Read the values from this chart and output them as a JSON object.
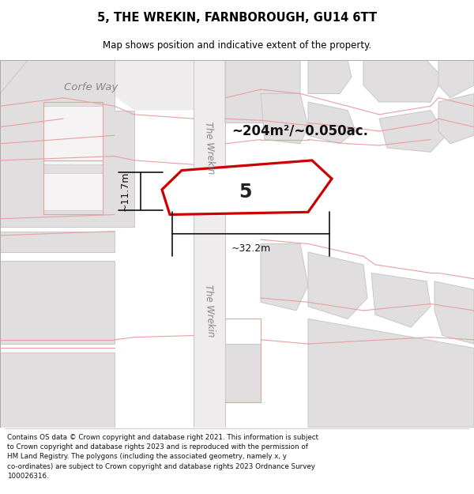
{
  "title": "5, THE WREKIN, FARNBOROUGH, GU14 6TT",
  "subtitle": "Map shows position and indicative extent of the property.",
  "footer": "Contains OS data © Crown copyright and database right 2021. This information is subject\nto Crown copyright and database rights 2023 and is reproduced with the permission of\nHM Land Registry. The polygons (including the associated geometry, namely x, y\nco-ordinates) are subject to Crown copyright and database rights 2023 Ordnance Survey\n100026316.",
  "map_bg": "#f2f0f0",
  "block_fill": "#e0dede",
  "block_edge": "#c8c6c6",
  "road_fill": "#f8f6f6",
  "road_edge": "#d0cccc",
  "red_line": "#e8a0a0",
  "prop_edge": "#cc0000",
  "prop_fill": "#ffffff",
  "dim_color": "#111111",
  "text_color": "#333333",
  "area_text": "~204m²/~0.050ac.",
  "plot_label": "5",
  "dim_width_label": "~32.2m",
  "dim_height_label": "~11.7m",
  "label_corfe": "Corfe Way",
  "label_wrekin_top": "The Wrekin",
  "label_wrekin_bot": "The Wrekin",
  "title_fontsize": 10.5,
  "subtitle_fontsize": 8.5,
  "footer_fontsize": 6.3
}
